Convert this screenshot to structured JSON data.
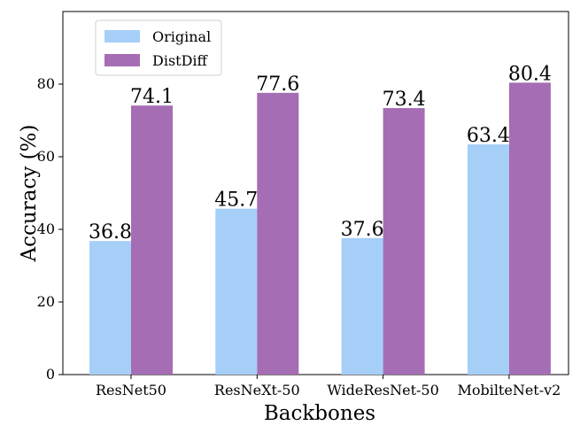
{
  "chart_data": {
    "type": "bar",
    "title": "",
    "xlabel": "Backbones",
    "ylabel": "Accuracy (%)",
    "categories": [
      "ResNet50",
      "ResNeXt-50",
      "WideResNet-50",
      "MobilteNet-v2"
    ],
    "series": [
      {
        "name": "Original",
        "color": "#a6cff8",
        "values": [
          36.8,
          45.7,
          37.6,
          63.4
        ],
        "labels": [
          "36.8",
          "45.7",
          "37.6",
          "63.4"
        ]
      },
      {
        "name": "DistDiff",
        "color": "#a56db3",
        "values": [
          74.1,
          77.6,
          73.4,
          80.4
        ],
        "labels": [
          "74.1",
          "77.6",
          "73.4",
          "80.4"
        ]
      }
    ],
    "ylim": [
      0,
      100
    ],
    "yticks": [
      0,
      20,
      40,
      60,
      80
    ],
    "grid": false,
    "legend": "top-left"
  }
}
